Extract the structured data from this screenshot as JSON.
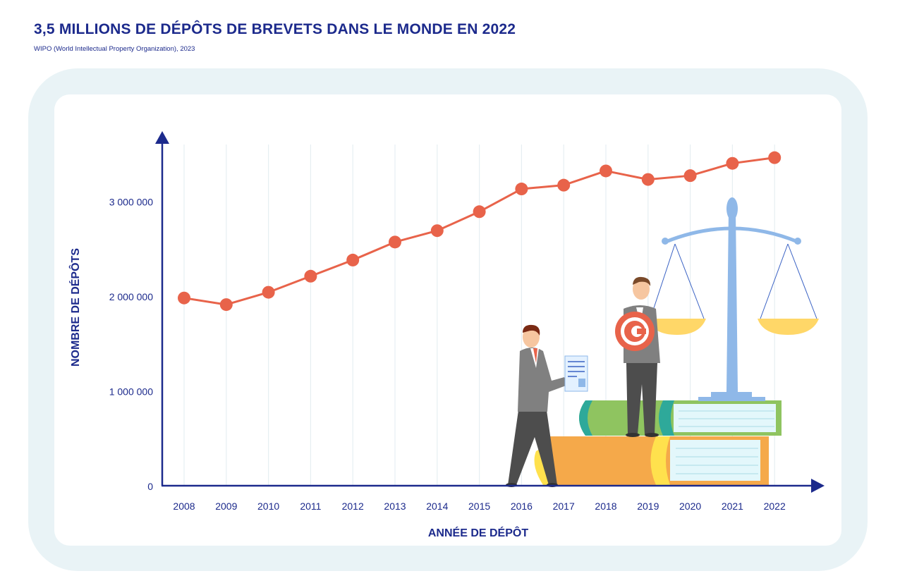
{
  "header": {
    "title": "3,5 MILLIONS DE DÉPÔTS DE BREVETS DANS LE MONDE EN 2022",
    "source": "WIPO (World Intellectual Property Organization), 2023"
  },
  "colors": {
    "title": "#1c2a8c",
    "axis": "#1c2a8c",
    "line": "#e8634a",
    "frame_bg": "#e9f3f6",
    "grid": "#e6eef2"
  },
  "illustration": {
    "icons": [
      "businessman-with-document-icon",
      "businessman-with-copyright-icon",
      "copyright-symbol-icon",
      "stack-of-books-icon",
      "scales-of-justice-icon"
    ]
  },
  "chart_data": {
    "type": "line",
    "xlabel": "ANNÉE DE DÉPÔT",
    "ylabel": "NOMBRE DE DÉPÔTS",
    "x": [
      "2008",
      "2009",
      "2010",
      "2011",
      "2012",
      "2013",
      "2014",
      "2015",
      "2016",
      "2017",
      "2018",
      "2019",
      "2020",
      "2021",
      "2022"
    ],
    "series": [
      {
        "values": [
          1980000,
          1910000,
          2040000,
          2210000,
          2380000,
          2570000,
          2690000,
          2890000,
          3130000,
          3170000,
          3320000,
          3230000,
          3270000,
          3400000,
          3460000
        ]
      }
    ],
    "yticks": [
      {
        "value": 0,
        "label": "0"
      },
      {
        "value": 1000000,
        "label": "1 000 000"
      },
      {
        "value": 2000000,
        "label": "2 000 000"
      },
      {
        "value": 3000000,
        "label": "3 000 000"
      }
    ],
    "ylim": [
      0,
      3600000
    ],
    "grid": "vertical",
    "legend": "none"
  }
}
